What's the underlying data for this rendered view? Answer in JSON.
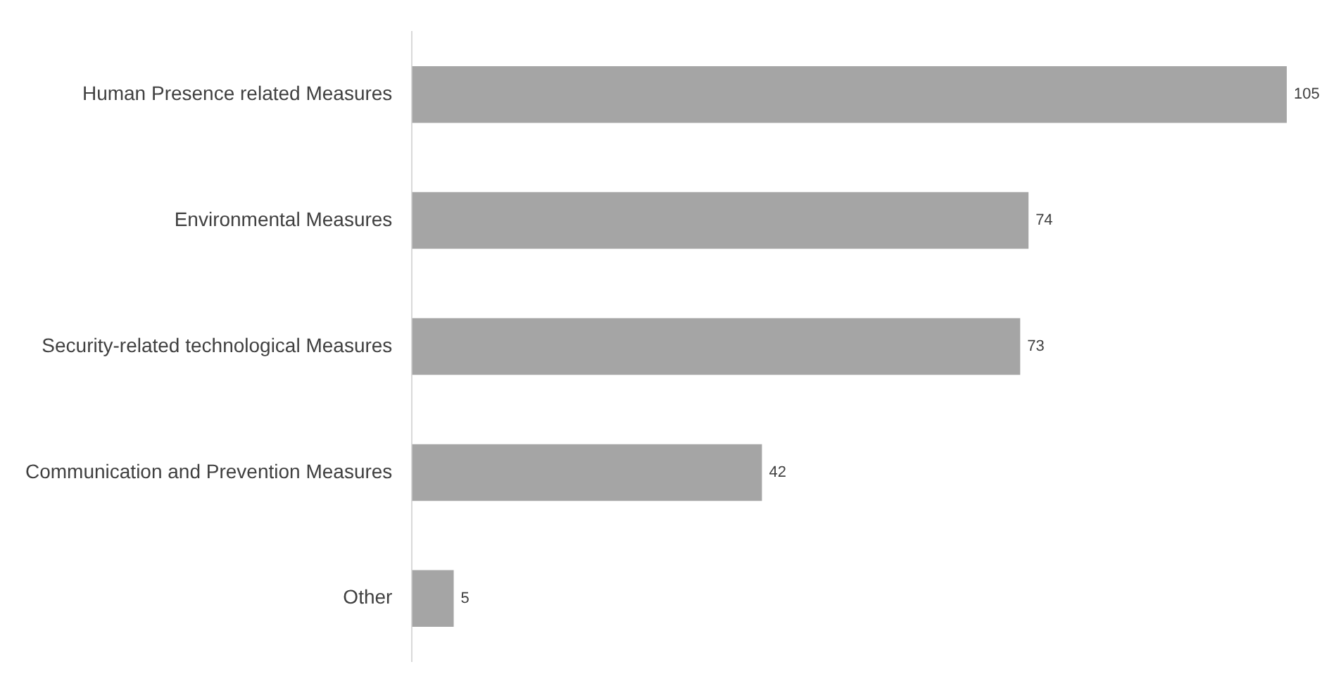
{
  "chart_data": {
    "type": "bar",
    "orientation": "horizontal",
    "categories": [
      "Human Presence related Measures",
      "Environmental Measures",
      "Security-related technological Measures",
      "Communication and Prevention Measures",
      "Other"
    ],
    "values": [
      105,
      74,
      73,
      42,
      5
    ],
    "color": "#a5a5a5",
    "data_labels": true
  }
}
